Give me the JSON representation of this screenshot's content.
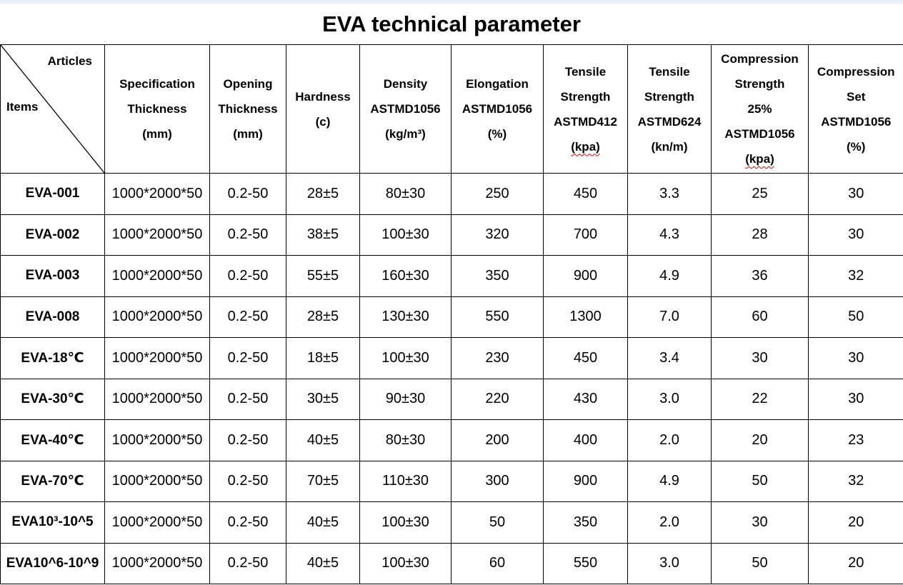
{
  "page": {
    "title": "EVA technical parameter"
  },
  "colors": {
    "top_strip": "#e9f0fb",
    "border": "#000000",
    "text": "#000000",
    "spellcheck": "#e00000"
  },
  "table": {
    "corner": {
      "top_label": "Articles",
      "bottom_label": "Items"
    },
    "columns": [
      {
        "key": "specification-thickness",
        "lines": [
          "Specification",
          "Thickness"
        ],
        "unit": "(mm)"
      },
      {
        "key": "opening-thickness",
        "lines": [
          "Opening",
          "Thickness"
        ],
        "unit": "(mm)"
      },
      {
        "key": "hardness",
        "lines": [
          "Hardness"
        ],
        "unit": "(c)"
      },
      {
        "key": "density",
        "lines": [
          "Density",
          "ASTMD1056"
        ],
        "unit": "(kg/m³)"
      },
      {
        "key": "elongation",
        "lines": [
          "Elongation",
          "ASTMD1056"
        ],
        "unit": "(%)"
      },
      {
        "key": "tensile-strength-astmd412",
        "lines": [
          "Tensile",
          "Strength",
          "ASTMD412"
        ],
        "unit": "(kpa)",
        "spellcheck_underline": true
      },
      {
        "key": "tensile-strength-astmd624",
        "lines": [
          "Tensile",
          "Strength",
          "ASTMD624"
        ],
        "unit": "(kn/m)"
      },
      {
        "key": "compression-strength",
        "lines": [
          "Compression",
          "Strength",
          "25%",
          "ASTMD1056"
        ],
        "unit": "(kpa)",
        "spellcheck_underline": true
      },
      {
        "key": "compression-set",
        "lines": [
          "Compression",
          "Set",
          "ASTMD1056"
        ],
        "unit": "(%)"
      }
    ],
    "rows": [
      {
        "name": "EVA-001",
        "values": [
          "1000*2000*50",
          "0.2-50",
          "28±5",
          "80±30",
          "250",
          "450",
          "3.3",
          "25",
          "30"
        ]
      },
      {
        "name": "EVA-002",
        "values": [
          "1000*2000*50",
          "0.2-50",
          "38±5",
          "100±30",
          "320",
          "700",
          "4.3",
          "28",
          "30"
        ]
      },
      {
        "name": "EVA-003",
        "values": [
          "1000*2000*50",
          "0.2-50",
          "55±5",
          "160±30",
          "350",
          "900",
          "4.9",
          "36",
          "32"
        ]
      },
      {
        "name": "EVA-008",
        "values": [
          "1000*2000*50",
          "0.2-50",
          "28±5",
          "130±30",
          "550",
          "1300",
          "7.0",
          "60",
          "50"
        ]
      },
      {
        "name": "EVA-18℃",
        "values": [
          "1000*2000*50",
          "0.2-50",
          "18±5",
          "100±30",
          "230",
          "450",
          "3.4",
          "30",
          "30"
        ]
      },
      {
        "name": "EVA-30℃",
        "values": [
          "1000*2000*50",
          "0.2-50",
          "30±5",
          "90±30",
          "220",
          "430",
          "3.0",
          "22",
          "30"
        ]
      },
      {
        "name": "EVA-40℃",
        "values": [
          "1000*2000*50",
          "0.2-50",
          "40±5",
          "80±30",
          "200",
          "400",
          "2.0",
          "20",
          "23"
        ]
      },
      {
        "name": "EVA-70℃",
        "values": [
          "1000*2000*50",
          "0.2-50",
          "70±5",
          "110±30",
          "300",
          "900",
          "4.9",
          "50",
          "32"
        ]
      },
      {
        "name": "EVA10³-10^5",
        "values": [
          "1000*2000*50",
          "0.2-50",
          "40±5",
          "100±30",
          "50",
          "350",
          "2.0",
          "30",
          "20"
        ]
      },
      {
        "name": "EVA10^6-10^9",
        "values": [
          "1000*2000*50",
          "0.2-50",
          "40±5",
          "100±30",
          "60",
          "550",
          "3.0",
          "50",
          "20"
        ]
      }
    ]
  }
}
